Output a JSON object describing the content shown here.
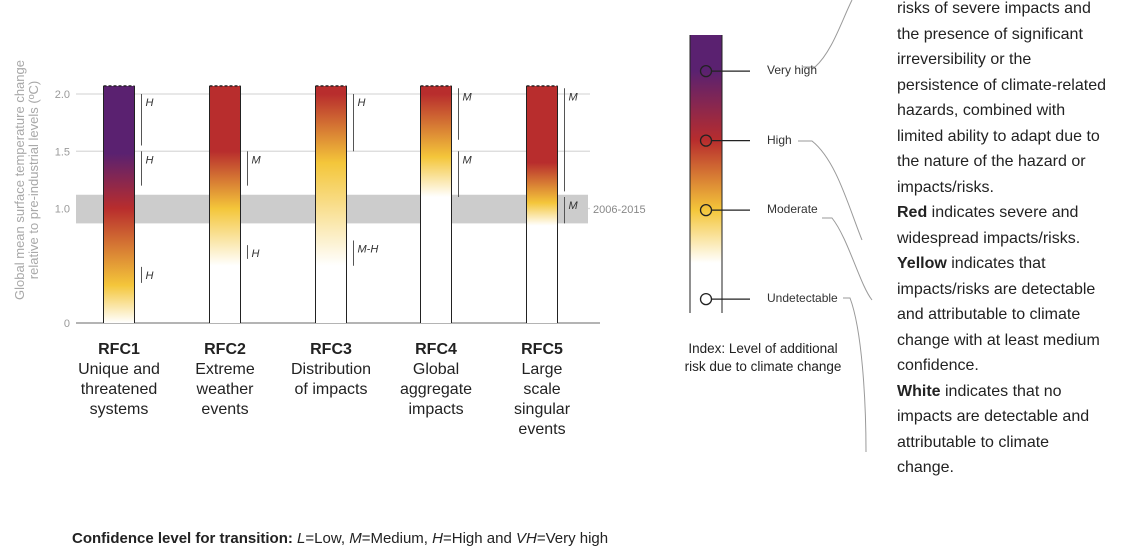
{
  "axis_title_line1": "Global mean surface temperature change",
  "axis_title_line2": "relative to pre-industrial levels (ºC)",
  "y_ticks": [
    {
      "value": 0,
      "label": "0"
    },
    {
      "value": 1.0,
      "label": "1.0"
    },
    {
      "value": 1.5,
      "label": "1.5"
    },
    {
      "value": 2.0,
      "label": "2.0"
    }
  ],
  "period_band": {
    "label": "2006-2015",
    "from": 0.87,
    "to": 1.12
  },
  "rfcs": [
    {
      "code": "RFC1",
      "desc": [
        "Unique and",
        "threatened",
        "systems"
      ],
      "gradient": [
        {
          "t": 0.0,
          "c": "white"
        },
        {
          "t": 0.33,
          "c": "yellow"
        },
        {
          "t": 1.0,
          "c": "red"
        },
        {
          "t": 1.48,
          "c": "purple"
        },
        {
          "t": 2.05,
          "c": "purple"
        }
      ],
      "confidence": [
        {
          "from": 0.35,
          "to": 0.49,
          "label": "H"
        },
        {
          "from": 1.2,
          "to": 1.5,
          "label": "H"
        },
        {
          "from": 1.55,
          "to": 2.0,
          "label": "H"
        }
      ]
    },
    {
      "code": "RFC2",
      "desc": [
        "Extreme",
        "weather",
        "events"
      ],
      "gradient": [
        {
          "t": 0.5,
          "c": "white"
        },
        {
          "t": 1.0,
          "c": "yellow"
        },
        {
          "t": 1.5,
          "c": "red"
        },
        {
          "t": 2.05,
          "c": "red"
        }
      ],
      "confidence": [
        {
          "from": 0.56,
          "to": 0.68,
          "label": "H"
        },
        {
          "from": 1.2,
          "to": 1.5,
          "label": "M"
        }
      ]
    },
    {
      "code": "RFC3",
      "desc": [
        "Distribution",
        "of impacts"
      ],
      "gradient": [
        {
          "t": 0.5,
          "c": "white"
        },
        {
          "t": 1.4,
          "c": "yellow"
        },
        {
          "t": 2.0,
          "c": "red"
        },
        {
          "t": 2.05,
          "c": "red"
        }
      ],
      "confidence": [
        {
          "from": 0.5,
          "to": 0.72,
          "label": "M-H"
        },
        {
          "from": 1.5,
          "to": 2.0,
          "label": "H"
        }
      ]
    },
    {
      "code": "RFC4",
      "desc": [
        "Global",
        "aggregate",
        "impacts"
      ],
      "gradient": [
        {
          "t": 1.1,
          "c": "white"
        },
        {
          "t": 1.45,
          "c": "yellow"
        },
        {
          "t": 2.0,
          "c": "red"
        },
        {
          "t": 2.05,
          "c": "red"
        }
      ],
      "confidence": [
        {
          "from": 1.1,
          "to": 1.5,
          "label": "M"
        },
        {
          "from": 1.6,
          "to": 2.05,
          "label": "M"
        }
      ]
    },
    {
      "code": "RFC5",
      "desc": [
        "Large",
        "scale",
        "singular",
        "events"
      ],
      "gradient": [
        {
          "t": 0.85,
          "c": "white"
        },
        {
          "t": 1.05,
          "c": "yellow"
        },
        {
          "t": 1.4,
          "c": "red"
        },
        {
          "t": 2.05,
          "c": "red"
        }
      ],
      "confidence": [
        {
          "from": 0.87,
          "to": 1.1,
          "label": "M"
        },
        {
          "from": 1.15,
          "to": 2.05,
          "label": "M"
        }
      ]
    }
  ],
  "colors": {
    "white": "#ffffff",
    "yellow": "#f4c63a",
    "red": "#b82d2d",
    "purple": "#5a2170",
    "band": "#cccccc",
    "grid": "#d9d9d9"
  },
  "index_levels": [
    {
      "label": "Very high",
      "level": 0.87,
      "dot": "purple"
    },
    {
      "label": "High",
      "level": 0.62,
      "dot": "red"
    },
    {
      "label": "Moderate",
      "level": 0.37,
      "dot": "yellow"
    },
    {
      "label": "Undetectable",
      "level": 0.05,
      "dot": "white"
    }
  ],
  "index_caption": [
    "Index: Level of additional",
    "risk due to climate change"
  ],
  "footer": {
    "bold": "Confidence level  for transition:",
    "parts": [
      " ",
      "L",
      "=Low, ",
      "M",
      "=Medium, ",
      "H",
      "=High and ",
      "VH",
      "=Very high"
    ]
  },
  "description": [
    {
      "bold": "",
      "text": "risks of severe impacts and"
    },
    {
      "bold": "",
      "text": "the presence of significant"
    },
    {
      "bold": "",
      "text": "irreversibility or the"
    },
    {
      "bold": "",
      "text": "persistence of climate-related"
    },
    {
      "bold": "",
      "text": "hazards, combined with"
    },
    {
      "bold": "",
      "text": "limited ability to adapt due to"
    },
    {
      "bold": "",
      "text": "the nature of the hazard or"
    },
    {
      "bold": "",
      "text": "impacts/risks."
    },
    {
      "bold": "Red",
      "text": " indicates severe and"
    },
    {
      "bold": "",
      "text": "widespread impacts/risks."
    },
    {
      "bold": "Yellow",
      "text": " indicates that"
    },
    {
      "bold": "",
      "text": "impacts/risks are detectable"
    },
    {
      "bold": "",
      "text": "and attributable to climate"
    },
    {
      "bold": "",
      "text": "change with at least medium"
    },
    {
      "bold": "",
      "text": "confidence."
    },
    {
      "bold": "White",
      "text": " indicates that no"
    },
    {
      "bold": "",
      "text": "impacts are detectable and"
    },
    {
      "bold": "",
      "text": "attributable to climate"
    },
    {
      "bold": "",
      "text": "change."
    }
  ]
}
